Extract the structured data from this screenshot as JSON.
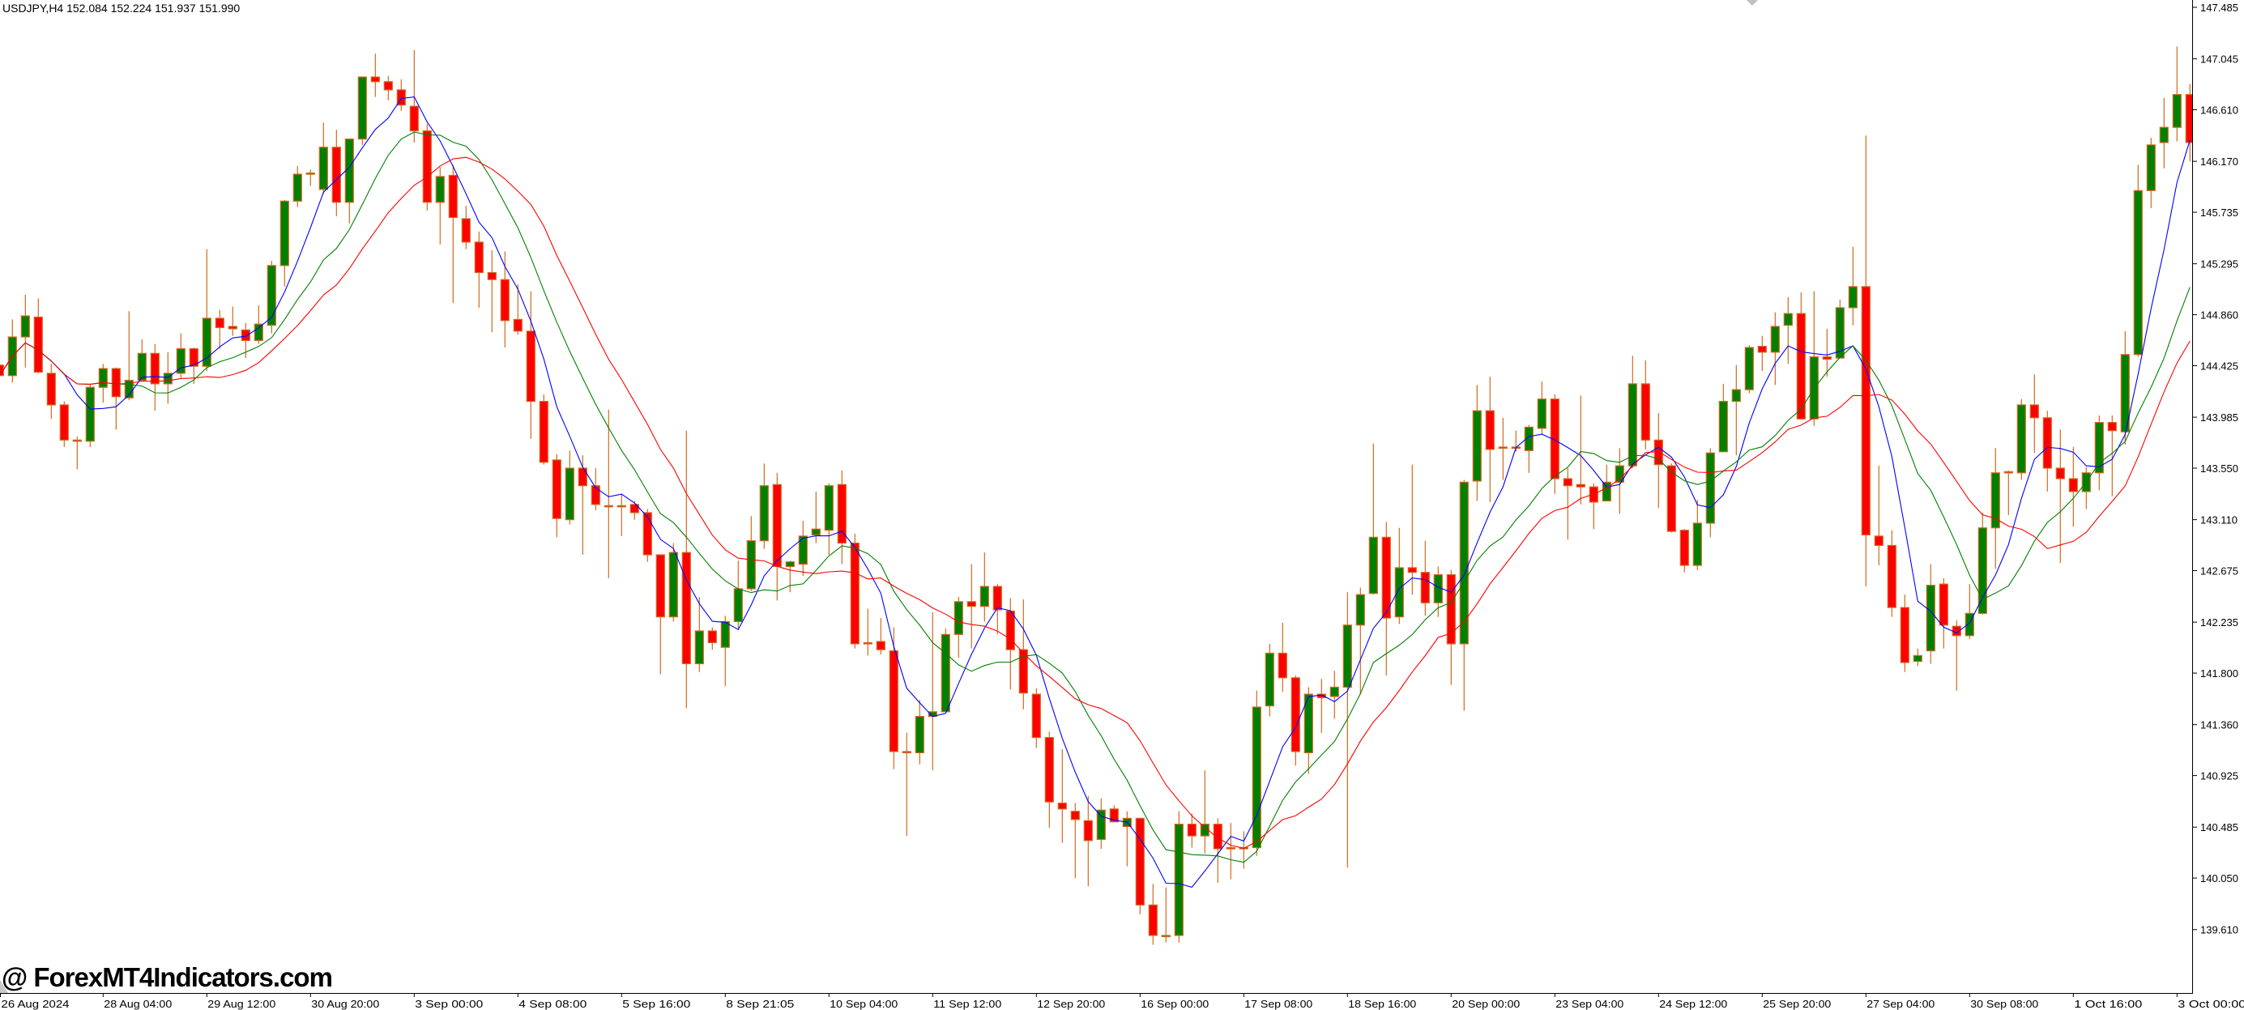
{
  "header": {
    "title": "USDJPY,H4  152.084 152.224 151.937 151.990"
  },
  "watermark": "@ ForexMT4Indicators.com",
  "chart_data": {
    "type": "candlestick",
    "symbol": "USDJPY",
    "timeframe": "H4",
    "ylim": [
      139.45,
      147.55
    ],
    "y_ticks": [
      "147.485",
      "147.045",
      "146.610",
      "146.170",
      "145.735",
      "145.295",
      "144.860",
      "144.425",
      "143.985",
      "143.550",
      "143.110",
      "142.675",
      "142.235",
      "141.800",
      "141.360",
      "140.925",
      "140.485",
      "140.050",
      "139.610"
    ],
    "x_tick_every_bars": 8,
    "x_ticks": [
      "26 Aug 2024",
      "28 Aug 04:00",
      "29 Aug 12:00",
      "30 Aug 20:00",
      "3 Sep 00:00",
      "4 Sep 08:00",
      "5 Sep 16:00",
      "8 Sep 21:05",
      "10 Sep 04:00",
      "11 Sep 12:00",
      "12 Sep 20:00",
      "16 Sep 00:00",
      "17 Sep 08:00",
      "18 Sep 16:00",
      "20 Sep 00:00",
      "23 Sep 04:00",
      "24 Sep 12:00",
      "25 Sep 20:00",
      "27 Sep 04:00",
      "30 Sep 08:00",
      "1 Oct 16:00",
      "3 Oct 00:00"
    ],
    "grid": false,
    "colors": {
      "bull": "#008000",
      "bear": "#FF0000",
      "outline": "#D2691E",
      "axis": "#000000"
    },
    "moving_averages": [
      {
        "color": "#0000FF"
      },
      {
        "color": "#008000"
      },
      {
        "color": "#FF0000"
      }
    ],
    "ohlc_fields": [
      "open",
      "high",
      "low",
      "close"
    ],
    "candles": [
      [
        144.43,
        144.45,
        144.32,
        144.34
      ],
      [
        144.34,
        144.82,
        144.28,
        144.67
      ],
      [
        144.67,
        145.03,
        144.41,
        144.85
      ],
      [
        144.84,
        145.0,
        144.36,
        144.37
      ],
      [
        144.36,
        144.44,
        143.97,
        144.09
      ],
      [
        144.09,
        144.12,
        143.73,
        143.79
      ],
      [
        143.79,
        143.82,
        143.54,
        143.78
      ],
      [
        143.78,
        144.27,
        143.73,
        144.24
      ],
      [
        144.24,
        144.44,
        144.11,
        144.4
      ],
      [
        144.4,
        144.41,
        143.88,
        144.16
      ],
      [
        144.15,
        144.89,
        144.13,
        144.3
      ],
      [
        144.3,
        144.65,
        144.3,
        144.53
      ],
      [
        144.53,
        144.61,
        144.04,
        144.27
      ],
      [
        144.27,
        144.54,
        144.1,
        144.36
      ],
      [
        144.36,
        144.7,
        144.32,
        144.57
      ],
      [
        144.57,
        144.58,
        144.27,
        144.42
      ],
      [
        144.42,
        145.42,
        144.38,
        144.83
      ],
      [
        144.83,
        144.9,
        144.57,
        144.75
      ],
      [
        144.76,
        144.93,
        144.68,
        144.74
      ],
      [
        144.73,
        144.79,
        144.49,
        144.64
      ],
      [
        144.64,
        144.94,
        144.61,
        144.78
      ],
      [
        144.77,
        145.32,
        144.7,
        145.28
      ],
      [
        145.28,
        145.84,
        145.1,
        145.83
      ],
      [
        145.83,
        146.13,
        145.78,
        146.06
      ],
      [
        146.06,
        146.1,
        145.96,
        146.07
      ],
      [
        145.93,
        146.5,
        145.89,
        146.29
      ],
      [
        146.29,
        146.44,
        145.7,
        145.82
      ],
      [
        145.82,
        146.36,
        145.64,
        146.36
      ],
      [
        146.36,
        146.89,
        146.31,
        146.89
      ],
      [
        146.89,
        147.09,
        146.72,
        146.85
      ],
      [
        146.85,
        146.9,
        146.69,
        146.78
      ],
      [
        146.78,
        146.87,
        146.6,
        146.65
      ],
      [
        146.64,
        147.12,
        146.33,
        146.43
      ],
      [
        146.43,
        146.49,
        145.75,
        145.82
      ],
      [
        145.82,
        146.12,
        145.46,
        146.04
      ],
      [
        146.05,
        146.14,
        144.96,
        145.69
      ],
      [
        145.68,
        145.79,
        145.42,
        145.48
      ],
      [
        145.48,
        145.57,
        144.92,
        145.22
      ],
      [
        145.22,
        145.41,
        144.71,
        145.16
      ],
      [
        145.16,
        145.4,
        144.58,
        144.81
      ],
      [
        144.82,
        145.12,
        144.69,
        144.72
      ],
      [
        144.72,
        145.06,
        143.8,
        144.12
      ],
      [
        144.12,
        144.18,
        143.58,
        143.6
      ],
      [
        143.62,
        143.67,
        142.96,
        143.12
      ],
      [
        143.11,
        143.7,
        143.07,
        143.55
      ],
      [
        143.55,
        143.66,
        142.81,
        143.4
      ],
      [
        143.4,
        143.55,
        143.19,
        143.24
      ],
      [
        143.23,
        144.05,
        142.61,
        143.22
      ],
      [
        143.22,
        143.33,
        142.97,
        143.23
      ],
      [
        143.24,
        143.27,
        143.11,
        143.17
      ],
      [
        143.17,
        143.2,
        142.75,
        142.81
      ],
      [
        142.81,
        142.81,
        141.79,
        142.28
      ],
      [
        142.28,
        142.91,
        142.24,
        142.83
      ],
      [
        142.83,
        143.87,
        141.5,
        141.88
      ],
      [
        141.88,
        142.45,
        141.81,
        142.16
      ],
      [
        142.16,
        142.19,
        142.0,
        142.06
      ],
      [
        142.02,
        142.29,
        141.69,
        142.24
      ],
      [
        142.24,
        142.76,
        142.17,
        142.52
      ],
      [
        142.52,
        143.14,
        142.5,
        142.93
      ],
      [
        142.93,
        143.59,
        142.86,
        143.4
      ],
      [
        143.41,
        143.51,
        142.42,
        142.71
      ],
      [
        142.71,
        142.76,
        142.49,
        142.75
      ],
      [
        142.73,
        143.1,
        142.63,
        142.97
      ],
      [
        142.98,
        143.35,
        142.91,
        143.03
      ],
      [
        143.02,
        143.42,
        142.81,
        143.4
      ],
      [
        143.41,
        143.53,
        142.73,
        142.91
      ],
      [
        142.91,
        142.99,
        142.01,
        142.05
      ],
      [
        142.06,
        142.35,
        141.95,
        142.05
      ],
      [
        142.07,
        142.27,
        141.96,
        142.0
      ],
      [
        141.99,
        142.19,
        140.98,
        141.13
      ],
      [
        141.13,
        141.29,
        140.41,
        141.12
      ],
      [
        141.12,
        141.57,
        141.02,
        141.43
      ],
      [
        141.43,
        142.32,
        140.97,
        141.47
      ],
      [
        141.47,
        142.18,
        141.47,
        142.13
      ],
      [
        142.13,
        142.45,
        141.93,
        142.41
      ],
      [
        142.41,
        142.73,
        142.01,
        142.37
      ],
      [
        142.37,
        142.83,
        142.24,
        142.54
      ],
      [
        142.54,
        142.56,
        142.13,
        142.34
      ],
      [
        142.33,
        142.44,
        141.66,
        142.0
      ],
      [
        142.0,
        142.43,
        141.49,
        141.63
      ],
      [
        141.62,
        141.67,
        141.16,
        141.25
      ],
      [
        141.25,
        141.3,
        140.48,
        140.7
      ],
      [
        140.69,
        141.15,
        140.35,
        140.64
      ],
      [
        140.62,
        140.69,
        140.05,
        140.55
      ],
      [
        140.54,
        140.75,
        139.98,
        140.37
      ],
      [
        140.38,
        140.73,
        140.3,
        140.63
      ],
      [
        140.64,
        140.67,
        140.53,
        140.53
      ],
      [
        140.49,
        140.62,
        140.15,
        140.56
      ],
      [
        140.56,
        140.56,
        139.74,
        139.82
      ],
      [
        139.82,
        140.0,
        139.48,
        139.56
      ],
      [
        139.56,
        139.97,
        139.5,
        139.56
      ],
      [
        139.56,
        140.62,
        139.5,
        140.51
      ],
      [
        140.51,
        140.6,
        140.31,
        140.41
      ],
      [
        140.41,
        140.97,
        140.26,
        140.51
      ],
      [
        140.51,
        140.56,
        140.01,
        140.3
      ],
      [
        140.31,
        140.52,
        140.04,
        140.3
      ],
      [
        140.3,
        140.45,
        140.13,
        140.31
      ],
      [
        140.31,
        141.65,
        140.24,
        141.51
      ],
      [
        141.52,
        142.05,
        141.43,
        141.97
      ],
      [
        141.97,
        142.23,
        141.64,
        141.76
      ],
      [
        141.76,
        141.78,
        141.01,
        141.13
      ],
      [
        141.12,
        141.68,
        140.94,
        141.62
      ],
      [
        141.62,
        141.75,
        141.29,
        141.59
      ],
      [
        141.6,
        141.82,
        141.41,
        141.68
      ],
      [
        141.68,
        142.49,
        140.14,
        142.21
      ],
      [
        142.21,
        142.53,
        141.62,
        142.47
      ],
      [
        142.48,
        143.76,
        142.47,
        142.96
      ],
      [
        142.96,
        143.09,
        141.78,
        142.27
      ],
      [
        142.28,
        143.04,
        142.22,
        142.7
      ],
      [
        142.7,
        143.58,
        142.47,
        142.66
      ],
      [
        142.66,
        142.93,
        142.29,
        142.4
      ],
      [
        142.4,
        142.71,
        142.28,
        142.64
      ],
      [
        142.64,
        142.68,
        141.7,
        142.05
      ],
      [
        142.05,
        143.45,
        141.48,
        143.43
      ],
      [
        143.44,
        144.26,
        143.27,
        144.04
      ],
      [
        144.04,
        144.33,
        143.26,
        143.71
      ],
      [
        143.73,
        143.98,
        143.45,
        143.72
      ],
      [
        143.72,
        143.87,
        143.69,
        143.73
      ],
      [
        143.7,
        143.92,
        143.51,
        143.9
      ],
      [
        143.89,
        144.29,
        143.84,
        144.14
      ],
      [
        144.14,
        144.18,
        143.33,
        143.46
      ],
      [
        143.46,
        143.55,
        142.94,
        143.4
      ],
      [
        143.41,
        144.17,
        143.24,
        143.39
      ],
      [
        143.39,
        143.42,
        143.03,
        143.26
      ],
      [
        143.27,
        143.58,
        143.27,
        143.43
      ],
      [
        143.43,
        143.72,
        143.16,
        143.57
      ],
      [
        143.57,
        144.51,
        143.55,
        144.27
      ],
      [
        144.27,
        144.47,
        143.71,
        143.79
      ],
      [
        143.79,
        144.02,
        143.21,
        143.58
      ],
      [
        143.57,
        143.59,
        143.0,
        143.01
      ],
      [
        143.02,
        143.03,
        142.66,
        142.72
      ],
      [
        142.72,
        143.28,
        142.68,
        143.08
      ],
      [
        143.08,
        143.72,
        142.96,
        143.68
      ],
      [
        143.69,
        144.27,
        143.69,
        144.12
      ],
      [
        144.12,
        144.43,
        143.66,
        144.22
      ],
      [
        144.22,
        144.6,
        144.19,
        144.58
      ],
      [
        144.59,
        144.68,
        144.38,
        144.54
      ],
      [
        144.54,
        144.88,
        144.26,
        144.76
      ],
      [
        144.77,
        145.01,
        144.44,
        144.87
      ],
      [
        144.87,
        145.05,
        143.97,
        143.97
      ],
      [
        143.97,
        145.06,
        143.91,
        144.5
      ],
      [
        144.5,
        144.74,
        144.33,
        144.48
      ],
      [
        144.49,
        144.99,
        144.49,
        144.92
      ],
      [
        144.92,
        145.44,
        144.77,
        145.1
      ],
      [
        145.1,
        146.39,
        142.54,
        142.98
      ],
      [
        142.97,
        143.57,
        142.72,
        142.89
      ],
      [
        142.89,
        143.02,
        142.28,
        142.36
      ],
      [
        142.36,
        142.47,
        141.81,
        141.89
      ],
      [
        141.9,
        142.01,
        141.86,
        141.95
      ],
      [
        141.99,
        142.73,
        141.88,
        142.55
      ],
      [
        142.56,
        142.61,
        142.01,
        142.21
      ],
      [
        142.2,
        142.25,
        141.65,
        142.12
      ],
      [
        142.12,
        142.56,
        142.09,
        142.31
      ],
      [
        142.31,
        143.17,
        142.3,
        143.04
      ],
      [
        143.04,
        143.72,
        142.69,
        143.51
      ],
      [
        143.52,
        143.53,
        143.15,
        143.51
      ],
      [
        143.51,
        144.14,
        143.45,
        144.09
      ],
      [
        144.09,
        144.35,
        143.68,
        143.98
      ],
      [
        143.98,
        144.04,
        143.35,
        143.55
      ],
      [
        143.55,
        143.88,
        142.74,
        143.46
      ],
      [
        143.46,
        143.73,
        143.05,
        143.35
      ],
      [
        143.35,
        143.56,
        143.2,
        143.51
      ],
      [
        143.51,
        144.0,
        143.36,
        143.94
      ],
      [
        143.94,
        144.0,
        143.31,
        143.87
      ],
      [
        143.86,
        144.72,
        143.75,
        144.52
      ],
      [
        144.52,
        146.14,
        144.5,
        145.92
      ],
      [
        145.92,
        146.37,
        145.77,
        146.31
      ],
      [
        146.33,
        146.71,
        146.11,
        146.46
      ],
      [
        146.46,
        147.15,
        146.34,
        146.74
      ],
      [
        146.74,
        146.83,
        146.17,
        146.33
      ]
    ]
  }
}
